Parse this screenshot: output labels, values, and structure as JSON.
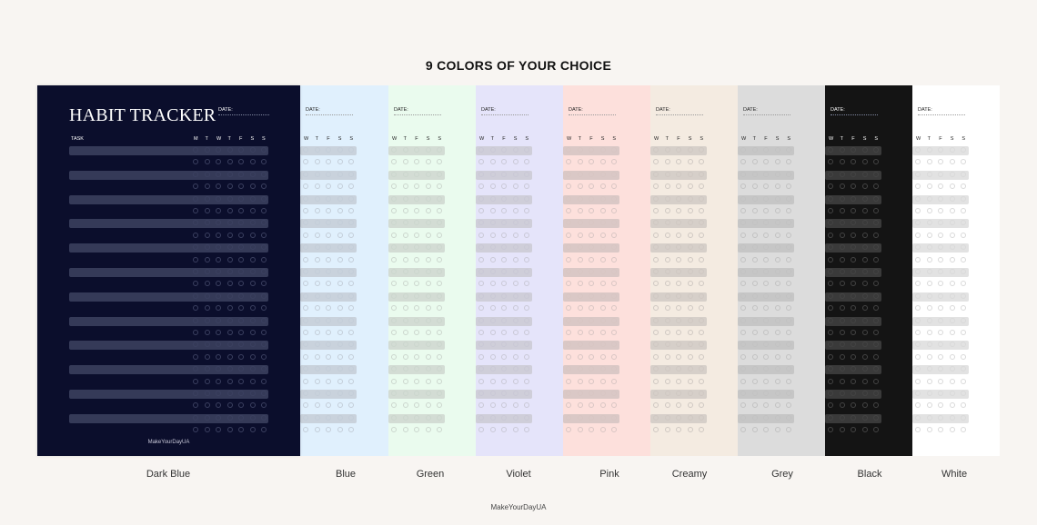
{
  "headline": "9 COLORS OF YOUR CHOICE",
  "bottom_brand": "MakeYourDayUA",
  "front_sheet": {
    "title": "HABIT TRACKER",
    "date_label": "DATE:",
    "task_label": "TASK",
    "days": [
      "M",
      "T",
      "W",
      "T",
      "F",
      "S",
      "S"
    ],
    "brand": "MakeYourDayUA"
  },
  "back_sheet": {
    "date_label": "DATE:",
    "days": [
      "W",
      "T",
      "F",
      "S",
      "S"
    ]
  },
  "variants": [
    {
      "name": "Dark Blue",
      "bg": "#0b0e2c",
      "text": "#ffffff",
      "bar": "#353a58",
      "circle": "#3b4060"
    },
    {
      "name": "Blue",
      "bg": "#e0f0fd",
      "text": "#222222",
      "bar": "#c9d2dc",
      "circle": "#c3cdd8"
    },
    {
      "name": "Green",
      "bg": "#eafbee",
      "text": "#222222",
      "bar": "#d3dcd4",
      "circle": "#cbd6cd"
    },
    {
      "name": "Violet",
      "bg": "#e5e4fa",
      "text": "#222222",
      "bar": "#cfced9",
      "circle": "#c9c8d6"
    },
    {
      "name": "Pink",
      "bg": "#fde0dc",
      "text": "#222222",
      "bar": "#dac8c6",
      "circle": "#d8c6c3"
    },
    {
      "name": "Creamy",
      "bg": "#f4ebe1",
      "text": "#222222",
      "bar": "#d6cfc9",
      "circle": "#cfc8c2"
    },
    {
      "name": "Grey",
      "bg": "#dcdcdc",
      "text": "#222222",
      "bar": "#c6c6c6",
      "circle": "#c2c2c2"
    },
    {
      "name": "Black",
      "bg": "#141414",
      "text": "#ffffff",
      "bar": "#3a3a3a",
      "circle": "#444444"
    },
    {
      "name": "White",
      "bg": "#ffffff",
      "text": "#222222",
      "bar": "#e2e2e2",
      "circle": "#d9d9d9"
    }
  ]
}
